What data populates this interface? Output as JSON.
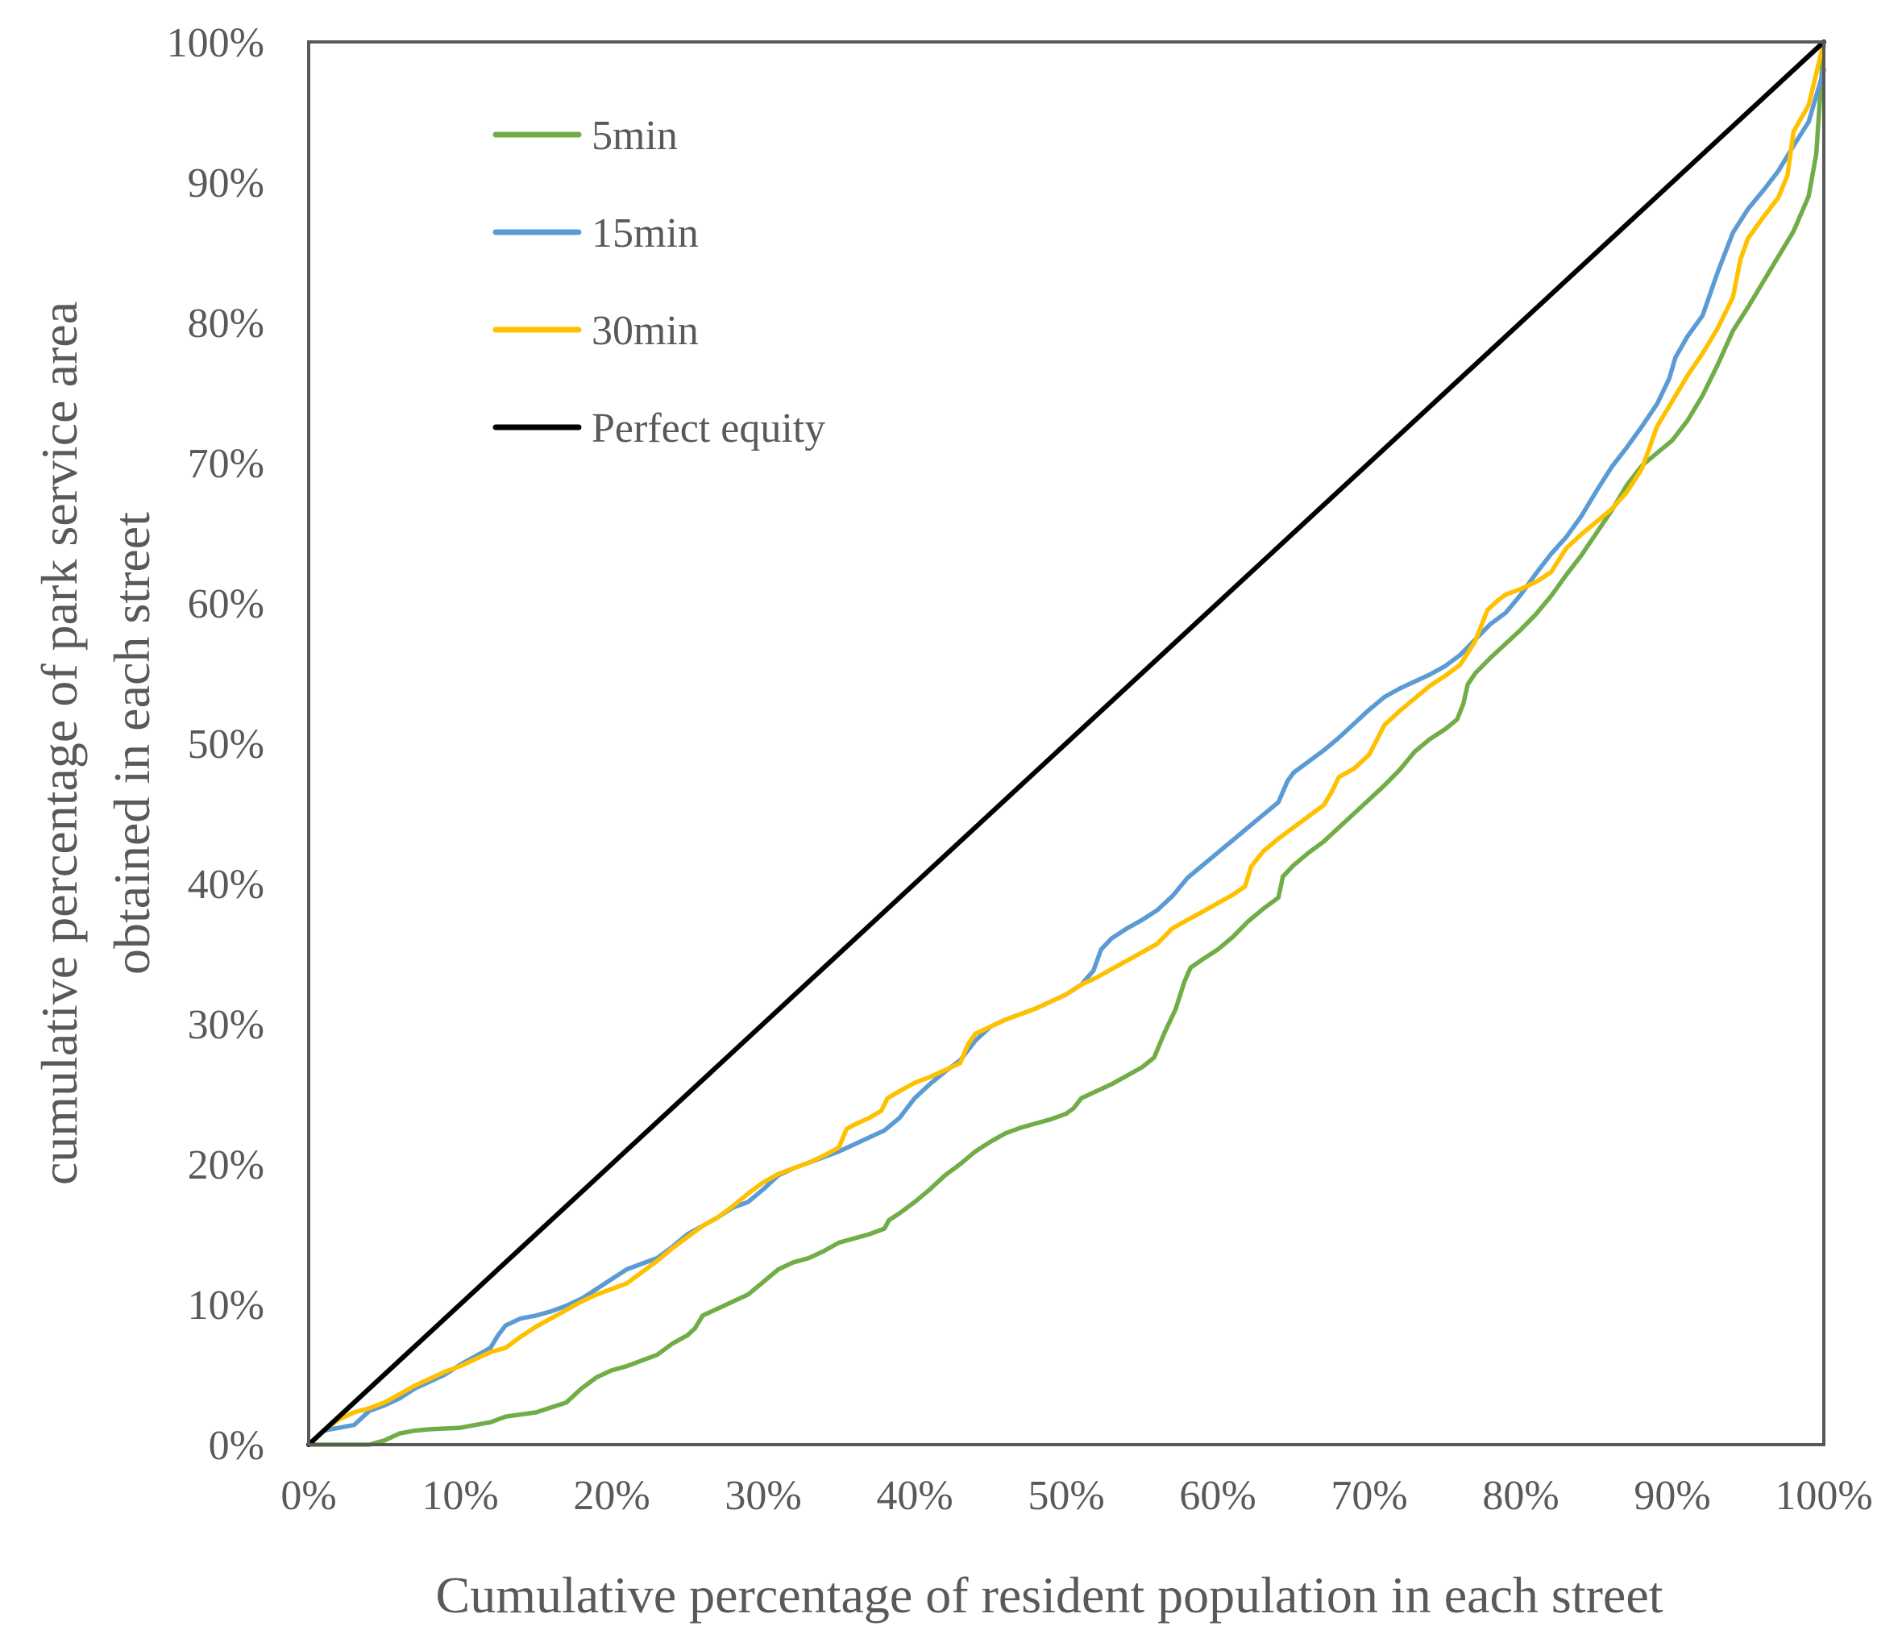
{
  "chart_data": {
    "type": "line",
    "title": "",
    "xlabel": "Cumulative percentage of resident population in each street",
    "ylabel_lines": [
      "cumulative percentage of park service area",
      "obtained in each street"
    ],
    "xlim": [
      0,
      100
    ],
    "ylim": [
      0,
      100
    ],
    "grid": false,
    "legend_position": "top-left",
    "x_ticks": [
      "0%",
      "10%",
      "20%",
      "30%",
      "40%",
      "50%",
      "60%",
      "70%",
      "80%",
      "90%",
      "100%"
    ],
    "y_ticks": [
      "0%",
      "10%",
      "20%",
      "30%",
      "40%",
      "50%",
      "60%",
      "70%",
      "80%",
      "90%",
      "100%"
    ],
    "series": [
      {
        "name": "5min",
        "color": "#70AD47",
        "points": [
          [
            0,
            0
          ],
          [
            2,
            0
          ],
          [
            4,
            0
          ],
          [
            5,
            0.3
          ],
          [
            6,
            0.8
          ],
          [
            7,
            1
          ],
          [
            8,
            1.1
          ],
          [
            10,
            1.2
          ],
          [
            11,
            1.4
          ],
          [
            12,
            1.6
          ],
          [
            13,
            2
          ],
          [
            15,
            2.3
          ],
          [
            17,
            3
          ],
          [
            18,
            4
          ],
          [
            19,
            4.8
          ],
          [
            20,
            5.3
          ],
          [
            21,
            5.6
          ],
          [
            22,
            6
          ],
          [
            23,
            6.4
          ],
          [
            24,
            7.2
          ],
          [
            25,
            7.8
          ],
          [
            25.5,
            8.3
          ],
          [
            26,
            9.2
          ],
          [
            27,
            9.7
          ],
          [
            28,
            10.2
          ],
          [
            29,
            10.7
          ],
          [
            30,
            11.6
          ],
          [
            31,
            12.5
          ],
          [
            32,
            13
          ],
          [
            33,
            13.3
          ],
          [
            34,
            13.8
          ],
          [
            35,
            14.4
          ],
          [
            36,
            14.7
          ],
          [
            37,
            15
          ],
          [
            38,
            15.4
          ],
          [
            38.3,
            16
          ],
          [
            39,
            16.5
          ],
          [
            40,
            17.3
          ],
          [
            41,
            18.2
          ],
          [
            42,
            19.2
          ],
          [
            43,
            20
          ],
          [
            44,
            20.9
          ],
          [
            45,
            21.6
          ],
          [
            46,
            22.2
          ],
          [
            47,
            22.6
          ],
          [
            48,
            22.9
          ],
          [
            49,
            23.2
          ],
          [
            50,
            23.6
          ],
          [
            50.5,
            24
          ],
          [
            51,
            24.7
          ],
          [
            52,
            25.2
          ],
          [
            53,
            25.7
          ],
          [
            54,
            26.3
          ],
          [
            55,
            26.9
          ],
          [
            55.8,
            27.6
          ],
          [
            56.5,
            29.4
          ],
          [
            57.2,
            31
          ],
          [
            57.8,
            33
          ],
          [
            58.2,
            34
          ],
          [
            59,
            34.6
          ],
          [
            60,
            35.3
          ],
          [
            61,
            36.2
          ],
          [
            62,
            37.3
          ],
          [
            63,
            38.2
          ],
          [
            64,
            39
          ],
          [
            64.3,
            40.5
          ],
          [
            65,
            41.3
          ],
          [
            66,
            42.2
          ],
          [
            67,
            43
          ],
          [
            68,
            44
          ],
          [
            69,
            45
          ],
          [
            70,
            46
          ],
          [
            71,
            47
          ],
          [
            72,
            48.1
          ],
          [
            73,
            49.4
          ],
          [
            74,
            50.3
          ],
          [
            75,
            51
          ],
          [
            75.8,
            51.7
          ],
          [
            76.2,
            52.8
          ],
          [
            76.5,
            54.2
          ],
          [
            77,
            55
          ],
          [
            78,
            56.1
          ],
          [
            79,
            57.1
          ],
          [
            80,
            58.1
          ],
          [
            81,
            59.2
          ],
          [
            82,
            60.5
          ],
          [
            83,
            62
          ],
          [
            84,
            63.4
          ],
          [
            85,
            65
          ],
          [
            86,
            66.6
          ],
          [
            87,
            68.4
          ],
          [
            88,
            69.8
          ],
          [
            89,
            70.7
          ],
          [
            90,
            71.6
          ],
          [
            91,
            73
          ],
          [
            92,
            74.8
          ],
          [
            93,
            77
          ],
          [
            94,
            79.4
          ],
          [
            95,
            81.1
          ],
          [
            96,
            82.9
          ],
          [
            97,
            84.7
          ],
          [
            98,
            86.5
          ],
          [
            99,
            89
          ],
          [
            99.5,
            92
          ],
          [
            100,
            100
          ]
        ]
      },
      {
        "name": "15min",
        "color": "#5B9BD5",
        "points": [
          [
            0,
            0
          ],
          [
            1,
            1
          ],
          [
            2,
            1.2
          ],
          [
            3,
            1.4
          ],
          [
            4,
            2.4
          ],
          [
            5,
            2.8
          ],
          [
            6,
            3.3
          ],
          [
            7,
            4
          ],
          [
            8,
            4.5
          ],
          [
            9,
            5
          ],
          [
            10,
            5.7
          ],
          [
            11,
            6.3
          ],
          [
            12,
            6.9
          ],
          [
            12.5,
            7.8
          ],
          [
            13,
            8.5
          ],
          [
            14,
            9
          ],
          [
            15,
            9.2
          ],
          [
            16,
            9.5
          ],
          [
            17,
            9.9
          ],
          [
            18,
            10.4
          ],
          [
            19,
            11.1
          ],
          [
            20,
            11.8
          ],
          [
            21,
            12.5
          ],
          [
            22,
            12.9
          ],
          [
            23,
            13.3
          ],
          [
            24,
            14.1
          ],
          [
            25,
            15
          ],
          [
            26,
            15.6
          ],
          [
            27,
            16.2
          ],
          [
            28,
            16.9
          ],
          [
            29,
            17.3
          ],
          [
            30,
            18.2
          ],
          [
            31,
            19.2
          ],
          [
            32,
            19.7
          ],
          [
            33,
            20.1
          ],
          [
            34,
            20.5
          ],
          [
            35,
            20.9
          ],
          [
            36,
            21.4
          ],
          [
            37,
            21.9
          ],
          [
            38,
            22.4
          ],
          [
            39,
            23.3
          ],
          [
            40,
            24.7
          ],
          [
            41,
            25.7
          ],
          [
            42,
            26.6
          ],
          [
            43,
            27.4
          ],
          [
            44,
            28.8
          ],
          [
            45,
            29.8
          ],
          [
            46,
            30.3
          ],
          [
            47,
            30.7
          ],
          [
            48,
            31.1
          ],
          [
            49,
            31.6
          ],
          [
            50,
            32.1
          ],
          [
            51,
            32.8
          ],
          [
            51.8,
            33.8
          ],
          [
            52.3,
            35.3
          ],
          [
            53,
            36.1
          ],
          [
            54,
            36.8
          ],
          [
            55,
            37.4
          ],
          [
            56,
            38.1
          ],
          [
            57,
            39.1
          ],
          [
            58,
            40.4
          ],
          [
            59,
            41.3
          ],
          [
            60,
            42.2
          ],
          [
            61,
            43.1
          ],
          [
            62,
            44
          ],
          [
            63,
            44.9
          ],
          [
            64,
            45.8
          ],
          [
            64.6,
            47.3
          ],
          [
            65,
            47.9
          ],
          [
            66,
            48.7
          ],
          [
            67,
            49.5
          ],
          [
            68,
            50.4
          ],
          [
            69,
            51.4
          ],
          [
            70,
            52.4
          ],
          [
            71,
            53.3
          ],
          [
            72,
            53.9
          ],
          [
            73,
            54.4
          ],
          [
            74,
            54.9
          ],
          [
            75,
            55.5
          ],
          [
            76,
            56.3
          ],
          [
            77,
            57.4
          ],
          [
            78,
            58.5
          ],
          [
            79,
            59.3
          ],
          [
            80,
            60.6
          ],
          [
            81,
            62.1
          ],
          [
            82,
            63.5
          ],
          [
            83,
            64.7
          ],
          [
            84,
            66.2
          ],
          [
            85,
            68
          ],
          [
            86,
            69.7
          ],
          [
            87,
            71.1
          ],
          [
            88,
            72.6
          ],
          [
            89,
            74.2
          ],
          [
            89.8,
            76
          ],
          [
            90.2,
            77.5
          ],
          [
            91,
            79
          ],
          [
            92,
            80.5
          ],
          [
            93,
            83.6
          ],
          [
            94,
            86.4
          ],
          [
            95,
            88.1
          ],
          [
            96,
            89.4
          ],
          [
            97,
            90.8
          ],
          [
            98,
            92.6
          ],
          [
            99,
            94.3
          ],
          [
            100,
            98
          ]
        ]
      },
      {
        "name": "30min",
        "color": "#FFC000",
        "points": [
          [
            0,
            0
          ],
          [
            1,
            1
          ],
          [
            2,
            1.8
          ],
          [
            3,
            2.3
          ],
          [
            4,
            2.6
          ],
          [
            5,
            3
          ],
          [
            6,
            3.6
          ],
          [
            7,
            4.2
          ],
          [
            8,
            4.7
          ],
          [
            9,
            5.2
          ],
          [
            10,
            5.6
          ],
          [
            11,
            6.1
          ],
          [
            12,
            6.6
          ],
          [
            13,
            6.9
          ],
          [
            14,
            7.7
          ],
          [
            15,
            8.4
          ],
          [
            16,
            9
          ],
          [
            17,
            9.6
          ],
          [
            18,
            10.2
          ],
          [
            19,
            10.7
          ],
          [
            20,
            11.1
          ],
          [
            21,
            11.5
          ],
          [
            22,
            12.3
          ],
          [
            23,
            13.1
          ],
          [
            24,
            14
          ],
          [
            25,
            14.8
          ],
          [
            26,
            15.6
          ],
          [
            27,
            16.2
          ],
          [
            28,
            17
          ],
          [
            29,
            17.9
          ],
          [
            30,
            18.7
          ],
          [
            31,
            19.3
          ],
          [
            32,
            19.7
          ],
          [
            33,
            20.1
          ],
          [
            34,
            20.6
          ],
          [
            35,
            21.2
          ],
          [
            35.5,
            22.5
          ],
          [
            36,
            22.8
          ],
          [
            37,
            23.3
          ],
          [
            37.8,
            23.8
          ],
          [
            38.2,
            24.7
          ],
          [
            39,
            25.2
          ],
          [
            40,
            25.8
          ],
          [
            41,
            26.2
          ],
          [
            42,
            26.7
          ],
          [
            43,
            27.2
          ],
          [
            43.5,
            28.5
          ],
          [
            44,
            29.3
          ],
          [
            45,
            29.8
          ],
          [
            46,
            30.3
          ],
          [
            47,
            30.7
          ],
          [
            48,
            31.1
          ],
          [
            49,
            31.6
          ],
          [
            50,
            32.1
          ],
          [
            51,
            32.8
          ],
          [
            52,
            33.3
          ],
          [
            53,
            33.9
          ],
          [
            54,
            34.5
          ],
          [
            55,
            35.1
          ],
          [
            56,
            35.7
          ],
          [
            57,
            36.8
          ],
          [
            58,
            37.4
          ],
          [
            59,
            38
          ],
          [
            60,
            38.6
          ],
          [
            61,
            39.2
          ],
          [
            61.8,
            39.8
          ],
          [
            62.2,
            41.2
          ],
          [
            63,
            42.3
          ],
          [
            64,
            43.2
          ],
          [
            65,
            44
          ],
          [
            66,
            44.8
          ],
          [
            67,
            45.6
          ],
          [
            67.5,
            46.5
          ],
          [
            68,
            47.6
          ],
          [
            69,
            48.2
          ],
          [
            70,
            49.2
          ],
          [
            71,
            51.3
          ],
          [
            72,
            52.3
          ],
          [
            73,
            53.2
          ],
          [
            74,
            54.1
          ],
          [
            75,
            54.8
          ],
          [
            76,
            55.6
          ],
          [
            77,
            57.3
          ],
          [
            77.8,
            59.5
          ],
          [
            78.5,
            60.2
          ],
          [
            79,
            60.6
          ],
          [
            80,
            61
          ],
          [
            81,
            61.5
          ],
          [
            82,
            62.2
          ],
          [
            83,
            63.9
          ],
          [
            84,
            64.9
          ],
          [
            85,
            65.8
          ],
          [
            86,
            66.7
          ],
          [
            87,
            67.9
          ],
          [
            88,
            69.6
          ],
          [
            89,
            72.6
          ],
          [
            90,
            74.4
          ],
          [
            91,
            76.2
          ],
          [
            92,
            77.8
          ],
          [
            93,
            79.6
          ],
          [
            94,
            81.8
          ],
          [
            94.5,
            84.5
          ],
          [
            95,
            86
          ],
          [
            96,
            87.5
          ],
          [
            97,
            88.9
          ],
          [
            97.6,
            90.5
          ],
          [
            98,
            93.6
          ],
          [
            99,
            95.5
          ],
          [
            100,
            100
          ]
        ]
      },
      {
        "name": "Perfect equity",
        "color": "#000000",
        "points": [
          [
            0,
            0
          ],
          [
            100,
            100
          ]
        ]
      }
    ]
  }
}
